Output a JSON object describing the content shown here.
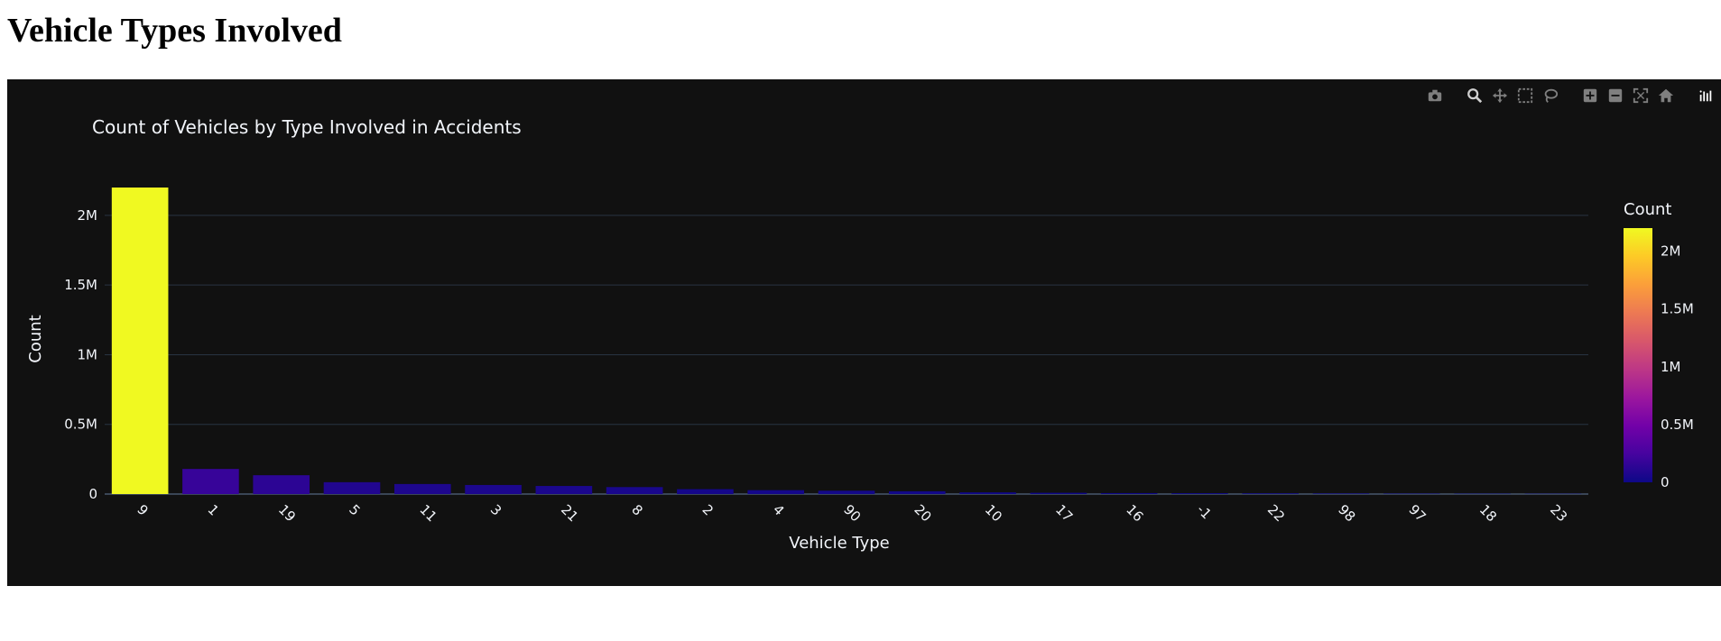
{
  "page": {
    "heading": "Vehicle Types Involved"
  },
  "modebar": {
    "icons": [
      "camera-icon",
      "zoom-icon",
      "pan-icon",
      "box-select-icon",
      "lasso-icon",
      "zoom-in-icon",
      "zoom-out-icon",
      "autoscale-icon",
      "home-icon",
      "plotly-logo-icon"
    ]
  },
  "chart_data": {
    "type": "bar",
    "title": "Count of Vehicles by Type Involved in Accidents",
    "xlabel": "Vehicle Type",
    "ylabel": "Count",
    "categories": [
      "9",
      "1",
      "19",
      "5",
      "11",
      "3",
      "21",
      "8",
      "2",
      "4",
      "90",
      "20",
      "10",
      "17",
      "16",
      "-1",
      "22",
      "98",
      "97",
      "18",
      "23"
    ],
    "values": [
      2200000,
      180000,
      135000,
      85000,
      72000,
      65000,
      58000,
      50000,
      35000,
      28000,
      24000,
      20000,
      12000,
      9000,
      7000,
      6000,
      5000,
      4000,
      3000,
      2500,
      2000
    ],
    "ylim": [
      0,
      2200000
    ],
    "yticks": [
      0,
      500000,
      1000000,
      1500000,
      2000000
    ],
    "ytick_labels": [
      "0",
      "0.5M",
      "1M",
      "1.5M",
      "2M"
    ],
    "grid": true,
    "colorbar": {
      "title": "Count",
      "ticks": [
        0,
        500000,
        1000000,
        1500000,
        2000000
      ],
      "tick_labels": [
        "0",
        "0.5M",
        "1M",
        "1.5M",
        "2M"
      ],
      "colorscale": [
        "#0d0887",
        "#46039f",
        "#7201a8",
        "#9c179e",
        "#bd3786",
        "#d8576b",
        "#ed7953",
        "#fb9f3a",
        "#fdca26",
        "#f0f921"
      ]
    },
    "background": "#111111",
    "gridcolor": "#283442",
    "textcolor": "#f2f5fa"
  }
}
